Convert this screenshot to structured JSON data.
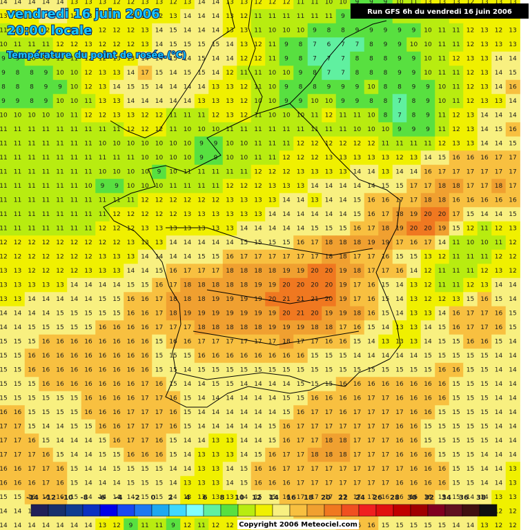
{
  "header": {
    "date": "vendredi 16 juin 2006",
    "time": "20:00 locale",
    "field": "Température du point de rosée.(°C)",
    "run": "Run GFS 6h du vendredi 16 juin 2006"
  },
  "footer": {
    "copyright": "Copyright 2006 Meteociel.com"
  },
  "legend": {
    "labels": [
      -14,
      -12,
      -10,
      -8,
      -6,
      -4,
      -2,
      0,
      2,
      4,
      6,
      8,
      10,
      12,
      14,
      16,
      18,
      20,
      22,
      24,
      26,
      28,
      30,
      32,
      34,
      36,
      38
    ],
    "colors": [
      "#202058",
      "#18306c",
      "#103c90",
      "#0a30c0",
      "#0000e8",
      "#1848f0",
      "#1e78f0",
      "#1ea8f0",
      "#40d8ff",
      "#80ffff",
      "#60f0a0",
      "#58e040",
      "#b8ec10",
      "#f0f000",
      "#f8f080",
      "#f8c040",
      "#f0a030",
      "#f07820",
      "#f05020",
      "#f02020",
      "#e01010",
      "#c00000",
      "#a00000",
      "#800020",
      "#601020",
      "#401010",
      "#101010"
    ]
  },
  "grid": {
    "values": [
      [
        14,
        14,
        14,
        14,
        14,
        13,
        13,
        13,
        12,
        12,
        13,
        13,
        12,
        13,
        14,
        14,
        13,
        13,
        12,
        12,
        12,
        11,
        11,
        10,
        10,
        9,
        9,
        9,
        10,
        11,
        13,
        13,
        13,
        12,
        13,
        13,
        13
      ],
      [
        13,
        13,
        13,
        14,
        14,
        13,
        13,
        13,
        13,
        13,
        12,
        12,
        13,
        14,
        14,
        14,
        13,
        12,
        11,
        11,
        11,
        11,
        11,
        11,
        9,
        8,
        9,
        9,
        10,
        10,
        11,
        11,
        12,
        12,
        12,
        13,
        13
      ],
      [
        11,
        12,
        12,
        12,
        13,
        13,
        13,
        12,
        12,
        12,
        13,
        14,
        15,
        14,
        14,
        14,
        13,
        13,
        11,
        10,
        10,
        10,
        9,
        8,
        8,
        9,
        9,
        9,
        9,
        9,
        10,
        11,
        11,
        12,
        13,
        12,
        13
      ],
      [
        10,
        11,
        11,
        11,
        12,
        12,
        13,
        12,
        12,
        12,
        13,
        14,
        15,
        15,
        15,
        15,
        14,
        13,
        12,
        11,
        9,
        8,
        7,
        6,
        7,
        7,
        8,
        9,
        9,
        10,
        10,
        11,
        11,
        12,
        13,
        13,
        13
      ],
      [
        9,
        9,
        10,
        10,
        11,
        11,
        12,
        12,
        13,
        13,
        14,
        14,
        15,
        14,
        15,
        14,
        14,
        12,
        12,
        11,
        9,
        8,
        7,
        7,
        7,
        8,
        8,
        8,
        9,
        9,
        10,
        11,
        12,
        13,
        13,
        14,
        14
      ],
      [
        9,
        8,
        8,
        9,
        10,
        10,
        12,
        13,
        13,
        14,
        17,
        15,
        14,
        15,
        15,
        14,
        12,
        11,
        11,
        10,
        10,
        9,
        8,
        7,
        7,
        8,
        8,
        8,
        9,
        9,
        10,
        11,
        11,
        12,
        13,
        14,
        15
      ],
      [
        8,
        8,
        8,
        9,
        9,
        10,
        12,
        13,
        14,
        15,
        15,
        14,
        14,
        14,
        14,
        13,
        13,
        12,
        11,
        10,
        9,
        8,
        8,
        9,
        9,
        9,
        10,
        8,
        8,
        9,
        9,
        10,
        11,
        12,
        13,
        14,
        16
      ],
      [
        9,
        9,
        8,
        9,
        10,
        10,
        11,
        13,
        13,
        14,
        14,
        14,
        14,
        14,
        13,
        13,
        13,
        12,
        10,
        10,
        9,
        9,
        10,
        10,
        9,
        9,
        8,
        8,
        7,
        8,
        9,
        10,
        11,
        12,
        13,
        13,
        14
      ],
      [
        10,
        10,
        10,
        10,
        10,
        11,
        12,
        12,
        13,
        13,
        12,
        12,
        11,
        11,
        11,
        12,
        13,
        12,
        11,
        10,
        10,
        10,
        11,
        12,
        11,
        11,
        10,
        8,
        7,
        8,
        9,
        11,
        12,
        13,
        14,
        14,
        14
      ],
      [
        11,
        11,
        11,
        11,
        11,
        11,
        11,
        11,
        11,
        12,
        12,
        12,
        11,
        10,
        10,
        10,
        11,
        11,
        11,
        11,
        11,
        11,
        11,
        11,
        11,
        10,
        10,
        10,
        9,
        9,
        9,
        11,
        12,
        13,
        14,
        15,
        16
      ],
      [
        11,
        11,
        11,
        11,
        11,
        11,
        11,
        10,
        10,
        10,
        10,
        10,
        10,
        10,
        9,
        9,
        10,
        10,
        11,
        11,
        11,
        12,
        12,
        12,
        12,
        12,
        12,
        11,
        11,
        11,
        11,
        12,
        13,
        13,
        14,
        14,
        15
      ],
      [
        11,
        11,
        11,
        11,
        11,
        11,
        11,
        11,
        11,
        11,
        10,
        10,
        10,
        10,
        9,
        9,
        10,
        10,
        11,
        11,
        12,
        12,
        12,
        13,
        13,
        13,
        13,
        13,
        12,
        13,
        14,
        15,
        16,
        16,
        16,
        17,
        17
      ],
      [
        11,
        11,
        11,
        11,
        11,
        11,
        11,
        10,
        10,
        10,
        10,
        9,
        10,
        11,
        11,
        11,
        11,
        11,
        12,
        12,
        12,
        13,
        13,
        13,
        13,
        14,
        14,
        13,
        14,
        14,
        16,
        17,
        17,
        17,
        17,
        17,
        17
      ],
      [
        11,
        11,
        11,
        11,
        11,
        11,
        10,
        9,
        9,
        10,
        10,
        10,
        11,
        11,
        11,
        11,
        12,
        12,
        12,
        13,
        13,
        13,
        14,
        14,
        14,
        14,
        14,
        15,
        15,
        17,
        17,
        18,
        18,
        17,
        17,
        18,
        17
      ],
      [
        11,
        11,
        11,
        11,
        11,
        11,
        11,
        11,
        11,
        11,
        12,
        12,
        12,
        12,
        12,
        12,
        13,
        13,
        13,
        13,
        14,
        14,
        13,
        14,
        14,
        15,
        16,
        16,
        17,
        17,
        18,
        18,
        16,
        16,
        16,
        16,
        16
      ],
      [
        11,
        11,
        11,
        11,
        11,
        11,
        11,
        11,
        12,
        12,
        12,
        12,
        12,
        13,
        13,
        13,
        13,
        13,
        13,
        14,
        14,
        14,
        14,
        14,
        14,
        15,
        16,
        17,
        18,
        19,
        20,
        20,
        17,
        15,
        14,
        14,
        15
      ],
      [
        11,
        11,
        11,
        11,
        11,
        11,
        11,
        12,
        12,
        12,
        13,
        13,
        13,
        13,
        13,
        13,
        13,
        14,
        14,
        14,
        14,
        14,
        15,
        15,
        15,
        16,
        17,
        18,
        19,
        20,
        20,
        19,
        15,
        12,
        11,
        12,
        13
      ],
      [
        12,
        12,
        12,
        12,
        12,
        12,
        12,
        12,
        12,
        13,
        13,
        13,
        14,
        14,
        14,
        14,
        14,
        15,
        15,
        15,
        15,
        16,
        17,
        18,
        18,
        18,
        19,
        19,
        17,
        16,
        17,
        14,
        11,
        10,
        10,
        11,
        12
      ],
      [
        12,
        12,
        12,
        12,
        12,
        12,
        12,
        13,
        13,
        13,
        14,
        14,
        14,
        14,
        15,
        15,
        16,
        17,
        17,
        17,
        17,
        17,
        17,
        18,
        18,
        17,
        17,
        16,
        15,
        15,
        13,
        12,
        11,
        11,
        11,
        12,
        12
      ],
      [
        13,
        13,
        12,
        12,
        12,
        12,
        13,
        13,
        13,
        14,
        14,
        15,
        16,
        17,
        17,
        17,
        18,
        18,
        18,
        18,
        19,
        19,
        20,
        20,
        19,
        18,
        17,
        17,
        16,
        14,
        12,
        11,
        11,
        11,
        12,
        13,
        12
      ],
      [
        13,
        13,
        13,
        13,
        13,
        14,
        14,
        14,
        14,
        15,
        15,
        16,
        17,
        18,
        18,
        18,
        18,
        18,
        19,
        19,
        20,
        20,
        20,
        20,
        19,
        17,
        16,
        15,
        14,
        13,
        12,
        11,
        11,
        12,
        13,
        14,
        14
      ],
      [
        13,
        13,
        14,
        14,
        14,
        14,
        14,
        15,
        15,
        16,
        16,
        17,
        18,
        18,
        18,
        19,
        19,
        19,
        19,
        20,
        21,
        21,
        21,
        20,
        19,
        17,
        16,
        15,
        14,
        13,
        12,
        12,
        13,
        15,
        16,
        15,
        14
      ],
      [
        14,
        14,
        14,
        14,
        15,
        15,
        15,
        15,
        15,
        16,
        16,
        17,
        18,
        19,
        19,
        19,
        19,
        19,
        19,
        19,
        20,
        21,
        20,
        19,
        19,
        18,
        16,
        15,
        14,
        13,
        13,
        14,
        16,
        17,
        17,
        16,
        15
      ],
      [
        14,
        14,
        15,
        15,
        15,
        15,
        15,
        16,
        16,
        16,
        16,
        17,
        17,
        17,
        18,
        18,
        18,
        18,
        18,
        19,
        19,
        19,
        18,
        18,
        17,
        16,
        15,
        14,
        13,
        13,
        14,
        15,
        16,
        17,
        17,
        16,
        15
      ],
      [
        15,
        15,
        15,
        16,
        16,
        16,
        16,
        16,
        16,
        16,
        16,
        15,
        16,
        16,
        17,
        17,
        17,
        17,
        17,
        17,
        18,
        17,
        17,
        16,
        16,
        15,
        14,
        13,
        13,
        13,
        14,
        15,
        15,
        16,
        16,
        15,
        14
      ],
      [
        15,
        15,
        16,
        16,
        16,
        16,
        16,
        16,
        16,
        16,
        16,
        15,
        15,
        15,
        16,
        16,
        16,
        16,
        16,
        16,
        16,
        16,
        15,
        15,
        15,
        14,
        14,
        14,
        14,
        14,
        15,
        15,
        15,
        15,
        15,
        14,
        14
      ],
      [
        15,
        15,
        16,
        16,
        16,
        16,
        16,
        16,
        16,
        16,
        16,
        15,
        15,
        14,
        15,
        15,
        15,
        15,
        15,
        15,
        15,
        15,
        15,
        15,
        15,
        15,
        15,
        15,
        15,
        15,
        15,
        16,
        16,
        15,
        15,
        14,
        14
      ],
      [
        15,
        15,
        15,
        16,
        16,
        16,
        16,
        16,
        16,
        16,
        17,
        16,
        15,
        14,
        14,
        15,
        15,
        14,
        14,
        14,
        14,
        15,
        15,
        15,
        16,
        16,
        16,
        16,
        16,
        16,
        16,
        16,
        15,
        15,
        15,
        14,
        14
      ],
      [
        15,
        15,
        15,
        15,
        15,
        15,
        16,
        16,
        16,
        16,
        17,
        17,
        16,
        15,
        14,
        14,
        14,
        14,
        14,
        14,
        15,
        15,
        16,
        16,
        16,
        16,
        17,
        17,
        16,
        16,
        16,
        16,
        15,
        15,
        15,
        14,
        14
      ],
      [
        16,
        16,
        15,
        15,
        15,
        15,
        16,
        16,
        16,
        17,
        17,
        17,
        16,
        15,
        14,
        14,
        14,
        14,
        14,
        14,
        15,
        16,
        17,
        17,
        16,
        17,
        17,
        17,
        17,
        16,
        16,
        15,
        15,
        15,
        15,
        14,
        14
      ],
      [
        17,
        17,
        15,
        14,
        14,
        15,
        15,
        16,
        16,
        17,
        17,
        17,
        16,
        15,
        14,
        14,
        14,
        14,
        14,
        15,
        16,
        17,
        17,
        17,
        17,
        17,
        17,
        17,
        16,
        16,
        15,
        15,
        15,
        15,
        15,
        14,
        14
      ],
      [
        17,
        17,
        16,
        15,
        14,
        14,
        14,
        15,
        16,
        17,
        17,
        16,
        15,
        14,
        14,
        13,
        13,
        14,
        14,
        15,
        16,
        17,
        17,
        18,
        18,
        17,
        17,
        17,
        16,
        16,
        15,
        15,
        15,
        15,
        15,
        14,
        14
      ],
      [
        17,
        17,
        17,
        16,
        15,
        14,
        14,
        15,
        15,
        16,
        16,
        16,
        15,
        14,
        13,
        13,
        13,
        14,
        15,
        16,
        17,
        17,
        18,
        18,
        18,
        17,
        17,
        17,
        16,
        16,
        16,
        15,
        15,
        15,
        14,
        14,
        14
      ],
      [
        16,
        16,
        17,
        17,
        16,
        15,
        14,
        14,
        15,
        15,
        15,
        15,
        14,
        14,
        13,
        13,
        14,
        15,
        16,
        16,
        17,
        17,
        17,
        17,
        17,
        17,
        17,
        17,
        17,
        16,
        16,
        16,
        15,
        15,
        14,
        14,
        13
      ],
      [
        16,
        16,
        16,
        17,
        16,
        15,
        14,
        14,
        14,
        15,
        15,
        15,
        14,
        13,
        13,
        13,
        14,
        15,
        16,
        16,
        16,
        17,
        17,
        17,
        17,
        17,
        17,
        17,
        16,
        16,
        16,
        16,
        15,
        15,
        14,
        14,
        13
      ],
      [
        15,
        15,
        16,
        16,
        16,
        15,
        14,
        14,
        14,
        14,
        15,
        15,
        14,
        13,
        13,
        13,
        13,
        14,
        15,
        15,
        16,
        17,
        17,
        17,
        17,
        17,
        17,
        16,
        16,
        16,
        16,
        15,
        15,
        14,
        14,
        13,
        13
      ],
      [
        14,
        14,
        14,
        15,
        15,
        15,
        14,
        14,
        13,
        13,
        14,
        14,
        13,
        13,
        12,
        13,
        13,
        14,
        14,
        15,
        15,
        16,
        16,
        16,
        16,
        16,
        16,
        15,
        15,
        15,
        15,
        15,
        14,
        14,
        13,
        12,
        12
      ],
      [
        14,
        14,
        14,
        14,
        14,
        14,
        14,
        13,
        12,
        9,
        11,
        11,
        9,
        12,
        11,
        12,
        12,
        13,
        14,
        14,
        15,
        15,
        15,
        15,
        16,
        16,
        16,
        15,
        15,
        15,
        15,
        15,
        14,
        14,
        13,
        12,
        12
      ]
    ]
  }
}
